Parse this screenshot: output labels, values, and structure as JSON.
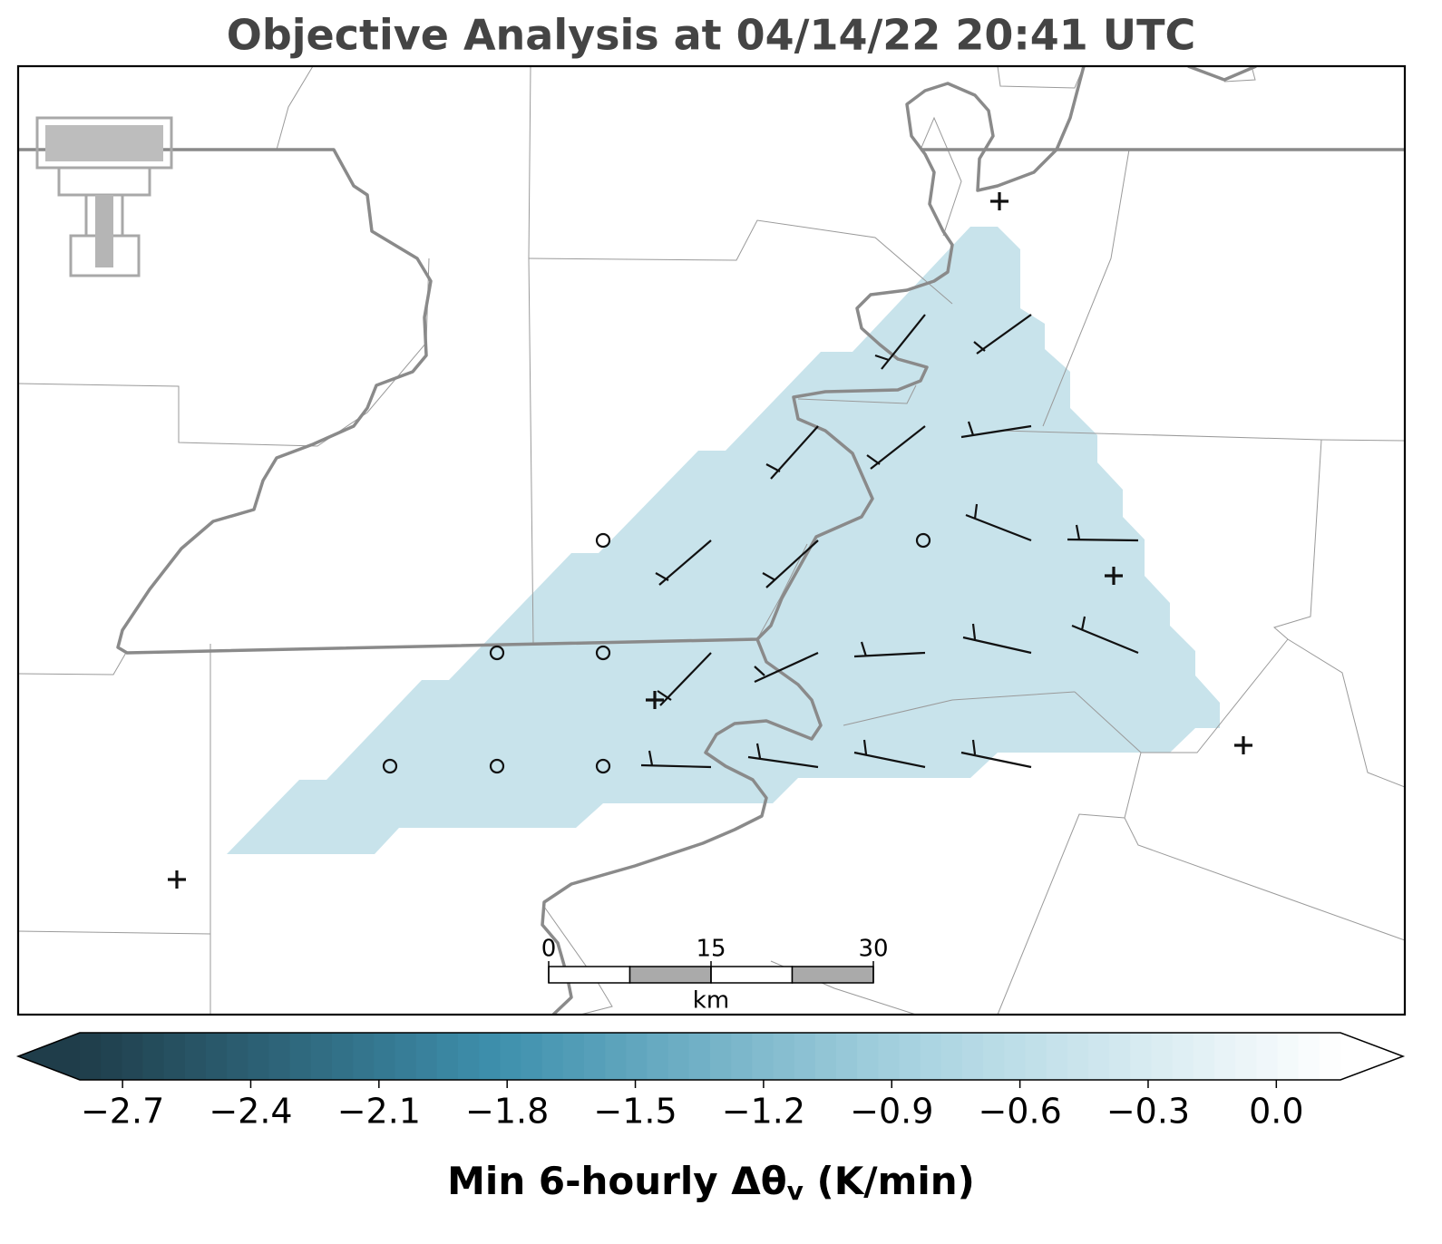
{
  "title": "Objective Analysis at 04/14/22 20:41 UTC",
  "scale_bar": {
    "ticks": [
      0,
      15,
      30
    ],
    "unit": "km"
  },
  "colorbar": {
    "lim": [
      -2.8,
      0.15
    ],
    "ticks": [
      {
        "value": -2.7,
        "label": "−2.7"
      },
      {
        "value": -2.4,
        "label": "−2.4"
      },
      {
        "value": -2.1,
        "label": "−2.1"
      },
      {
        "value": -1.8,
        "label": "−1.8"
      },
      {
        "value": -1.5,
        "label": "−1.5"
      },
      {
        "value": -1.2,
        "label": "−1.2"
      },
      {
        "value": -0.9,
        "label": "−0.9"
      },
      {
        "value": -0.6,
        "label": "−0.6"
      },
      {
        "value": -0.3,
        "label": "−0.3"
      },
      {
        "value": 0,
        "label": "0.0"
      }
    ],
    "colors": [
      "#1f3d4a",
      "#3e90ad",
      "#aad4e1",
      "#ffffff"
    ],
    "label": {
      "text": "Min 6-hourly Δθ",
      "subscript": "v",
      "suffix": " (K/min)"
    }
  }
}
